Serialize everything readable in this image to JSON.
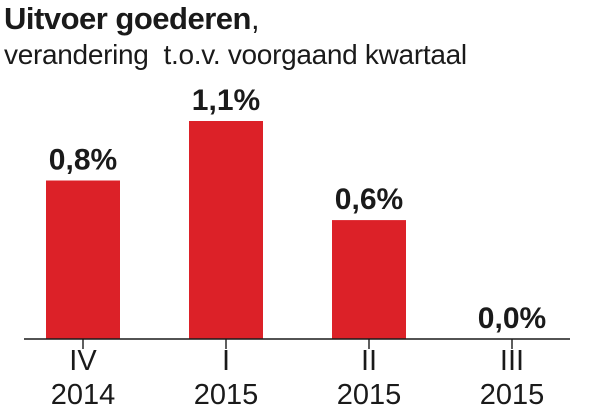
{
  "colors": {
    "bar": "#dc2128",
    "text": "#1a1a1a",
    "axis": "#1a1a1a"
  },
  "chart_data": {
    "type": "bar",
    "title": "Uitvoer goederen",
    "title_suffix": ",",
    "subtitle": "verandering  t.o.v. voorgaand kwartaal",
    "categories": [
      "IV 2014",
      "I 2015",
      "II 2015",
      "III 2015"
    ],
    "category_lines": [
      [
        "IV",
        "2014"
      ],
      [
        "I",
        "2015"
      ],
      [
        "II",
        "2015"
      ],
      [
        "III",
        "2015"
      ]
    ],
    "values": [
      0.8,
      1.1,
      0.6,
      0.0
    ],
    "value_labels": [
      "0,8%",
      "1,1%",
      "0,6%",
      "0,0%"
    ],
    "unit": "%",
    "ylim": [
      0,
      1.1
    ],
    "grid": false,
    "legend": "none"
  }
}
